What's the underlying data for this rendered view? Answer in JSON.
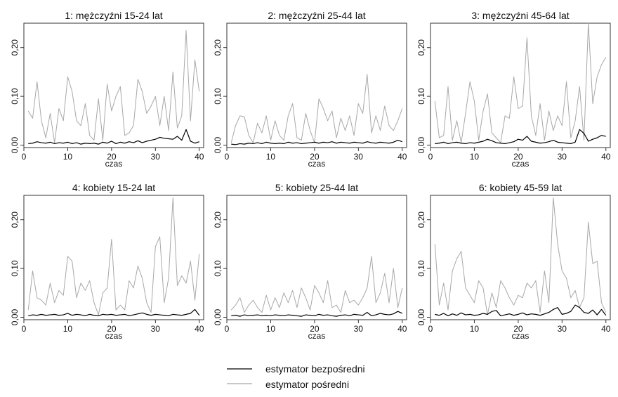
{
  "legend": {
    "direct_label": "estymator bezpośredni",
    "indirect_label": "estymator pośredni",
    "direct_color": "#000000",
    "indirect_color": "#a8a8a8"
  },
  "chart_data": [
    {
      "type": "line",
      "title": "1:  mężczyźni 15-24 lat",
      "xlabel": "czas",
      "ylabel": "",
      "xlim": [
        0,
        41
      ],
      "ylim": [
        -0.005,
        0.25
      ],
      "xticks": [
        "0",
        "10",
        "20",
        "30",
        "40"
      ],
      "yticks": [
        "0,00",
        "0,10",
        "0,20"
      ],
      "series": [
        {
          "name": "estymator bezpośredni",
          "color": "#000000",
          "values": [
            0.003,
            0.004,
            0.007,
            0.005,
            0.004,
            0.006,
            0.003,
            0.005,
            0.004,
            0.006,
            0.003,
            0.005,
            0.002,
            0.004,
            0.003,
            0.004,
            0.002,
            0.006,
            0.004,
            0.008,
            0.003,
            0.006,
            0.004,
            0.007,
            0.005,
            0.009,
            0.005,
            0.008,
            0.01,
            0.012,
            0.016,
            0.014,
            0.013,
            0.012,
            0.018,
            0.01,
            0.032,
            0.008,
            0.004,
            0.007
          ]
        },
        {
          "name": "estymator pośredni",
          "color": "#a8a8a8",
          "values": [
            0.07,
            0.055,
            0.13,
            0.05,
            0.015,
            0.065,
            0.005,
            0.075,
            0.05,
            0.14,
            0.11,
            0.05,
            0.04,
            0.085,
            0.02,
            0.01,
            0.095,
            0.01,
            0.125,
            0.07,
            0.1,
            0.12,
            0.02,
            0.025,
            0.04,
            0.135,
            0.11,
            0.065,
            0.08,
            0.1,
            0.04,
            0.1,
            0.03,
            0.15,
            0.035,
            0.06,
            0.235,
            0.05,
            0.175,
            0.11
          ]
        }
      ]
    },
    {
      "type": "line",
      "title": "2:  mężczyźni 25-44 lat",
      "xlabel": "czas",
      "ylabel": "",
      "xlim": [
        0,
        41
      ],
      "ylim": [
        -0.005,
        0.25
      ],
      "xticks": [
        "0",
        "10",
        "20",
        "30",
        "40"
      ],
      "yticks": [
        "0,00",
        "0,10",
        "0,20"
      ],
      "series": [
        {
          "name": "estymator bezpośredni",
          "color": "#000000",
          "values": [
            0.002,
            0.001,
            0.003,
            0.002,
            0.004,
            0.003,
            0.005,
            0.003,
            0.006,
            0.004,
            0.003,
            0.004,
            0.003,
            0.006,
            0.004,
            0.005,
            0.003,
            0.004,
            0.005,
            0.006,
            0.004,
            0.006,
            0.005,
            0.007,
            0.004,
            0.006,
            0.005,
            0.004,
            0.006,
            0.005,
            0.004,
            0.007,
            0.005,
            0.004,
            0.006,
            0.005,
            0.004,
            0.006,
            0.01,
            0.007
          ]
        },
        {
          "name": "estymator pośredni",
          "color": "#a8a8a8",
          "values": [
            0.005,
            0.04,
            0.06,
            0.058,
            0.02,
            0.005,
            0.045,
            0.025,
            0.06,
            0.01,
            0.05,
            0.02,
            0.01,
            0.06,
            0.085,
            0.015,
            0.01,
            0.065,
            0.03,
            0.005,
            0.095,
            0.075,
            0.05,
            0.07,
            0.015,
            0.055,
            0.03,
            0.06,
            0.02,
            0.085,
            0.065,
            0.145,
            0.025,
            0.06,
            0.03,
            0.08,
            0.04,
            0.03,
            0.05,
            0.075
          ]
        }
      ]
    },
    {
      "type": "line",
      "title": "3:  mężczyźni 45-64 lat",
      "xlabel": "czas",
      "ylabel": "",
      "xlim": [
        0,
        41
      ],
      "ylim": [
        -0.005,
        0.25
      ],
      "xticks": [
        "0",
        "10",
        "20",
        "30",
        "40"
      ],
      "yticks": [
        "0,00",
        "0,10",
        "0,20"
      ],
      "series": [
        {
          "name": "estymator bezpośredni",
          "color": "#000000",
          "values": [
            0.003,
            0.004,
            0.006,
            0.003,
            0.005,
            0.006,
            0.004,
            0.003,
            0.005,
            0.004,
            0.006,
            0.008,
            0.012,
            0.009,
            0.005,
            0.004,
            0.003,
            0.005,
            0.007,
            0.012,
            0.01,
            0.018,
            0.008,
            0.006,
            0.004,
            0.005,
            0.007,
            0.01,
            0.006,
            0.005,
            0.004,
            0.003,
            0.006,
            0.032,
            0.024,
            0.008,
            0.012,
            0.015,
            0.02,
            0.018
          ]
        },
        {
          "name": "estymator pośredni",
          "color": "#a8a8a8",
          "values": [
            0.09,
            0.015,
            0.02,
            0.12,
            0.01,
            0.05,
            0.005,
            0.065,
            0.13,
            0.09,
            0.01,
            0.07,
            0.105,
            0.025,
            0.015,
            0.005,
            0.06,
            0.055,
            0.14,
            0.075,
            0.08,
            0.22,
            0.06,
            0.02,
            0.085,
            0.01,
            0.07,
            0.03,
            0.06,
            0.04,
            0.13,
            0.015,
            0.05,
            0.12,
            0.01,
            0.25,
            0.085,
            0.14,
            0.165,
            0.18
          ]
        }
      ]
    },
    {
      "type": "line",
      "title": "4:  kobiety 15-24 lat",
      "xlabel": "czas",
      "ylabel": "",
      "xlim": [
        0,
        41
      ],
      "ylim": [
        -0.005,
        0.25
      ],
      "xticks": [
        "0",
        "10",
        "20",
        "30",
        "40"
      ],
      "yticks": [
        "0,00",
        "0,10",
        "0,20"
      ],
      "series": [
        {
          "name": "estymator bezpośredni",
          "color": "#000000",
          "values": [
            0.003,
            0.005,
            0.004,
            0.006,
            0.004,
            0.005,
            0.006,
            0.004,
            0.005,
            0.008,
            0.004,
            0.006,
            0.005,
            0.003,
            0.006,
            0.004,
            0.003,
            0.006,
            0.005,
            0.006,
            0.004,
            0.005,
            0.006,
            0.003,
            0.005,
            0.007,
            0.009,
            0.006,
            0.004,
            0.006,
            0.005,
            0.004,
            0.003,
            0.006,
            0.005,
            0.004,
            0.006,
            0.008,
            0.016,
            0.004
          ]
        },
        {
          "name": "estymator pośredni",
          "color": "#a8a8a8",
          "values": [
            0.015,
            0.095,
            0.04,
            0.035,
            0.025,
            0.07,
            0.03,
            0.055,
            0.045,
            0.125,
            0.115,
            0.04,
            0.07,
            0.055,
            0.075,
            0.03,
            0.005,
            0.05,
            0.06,
            0.16,
            0.015,
            0.025,
            0.015,
            0.075,
            0.06,
            0.105,
            0.08,
            0.03,
            0.01,
            0.145,
            0.165,
            0.03,
            0.08,
            0.245,
            0.065,
            0.085,
            0.07,
            0.115,
            0.035,
            0.13
          ]
        }
      ]
    },
    {
      "type": "line",
      "title": "5:  kobiety 25-44 lat",
      "xlabel": "czas",
      "ylabel": "",
      "xlim": [
        0,
        41
      ],
      "ylim": [
        -0.005,
        0.25
      ],
      "xticks": [
        "0",
        "10",
        "20",
        "30",
        "40"
      ],
      "yticks": [
        "0,00",
        "0,10",
        "0,20"
      ],
      "series": [
        {
          "name": "estymator bezpośredni",
          "color": "#000000",
          "values": [
            0.003,
            0.004,
            0.002,
            0.005,
            0.003,
            0.004,
            0.005,
            0.003,
            0.004,
            0.003,
            0.005,
            0.004,
            0.003,
            0.005,
            0.004,
            0.003,
            0.002,
            0.005,
            0.004,
            0.003,
            0.006,
            0.004,
            0.005,
            0.003,
            0.002,
            0.004,
            0.005,
            0.003,
            0.006,
            0.005,
            0.004,
            0.01,
            0.003,
            0.005,
            0.008,
            0.006,
            0.005,
            0.007,
            0.012,
            0.008
          ]
        },
        {
          "name": "estymator pośredni",
          "color": "#a8a8a8",
          "values": [
            0.015,
            0.025,
            0.04,
            0.01,
            0.025,
            0.035,
            0.02,
            0.01,
            0.045,
            0.015,
            0.04,
            0.02,
            0.05,
            0.03,
            0.055,
            0.02,
            0.06,
            0.04,
            0.015,
            0.065,
            0.05,
            0.03,
            0.075,
            0.02,
            0.025,
            0.01,
            0.055,
            0.03,
            0.035,
            0.025,
            0.04,
            0.06,
            0.125,
            0.03,
            0.05,
            0.09,
            0.03,
            0.1,
            0.02,
            0.06
          ]
        }
      ]
    },
    {
      "type": "line",
      "title": "6:  kobiety 45-59 lat",
      "xlabel": "czas",
      "ylabel": "",
      "xlim": [
        0,
        41
      ],
      "ylim": [
        -0.005,
        0.25
      ],
      "xticks": [
        "0",
        "10",
        "20",
        "30",
        "40"
      ],
      "yticks": [
        "0,00",
        "0,10",
        "0,20"
      ],
      "series": [
        {
          "name": "estymator bezpośredni",
          "color": "#000000",
          "values": [
            0.006,
            0.004,
            0.008,
            0.003,
            0.007,
            0.004,
            0.009,
            0.005,
            0.006,
            0.004,
            0.005,
            0.008,
            0.006,
            0.012,
            0.014,
            0.003,
            0.005,
            0.007,
            0.004,
            0.006,
            0.009,
            0.005,
            0.007,
            0.006,
            0.004,
            0.007,
            0.01,
            0.016,
            0.02,
            0.006,
            0.008,
            0.012,
            0.025,
            0.02,
            0.01,
            0.008,
            0.015,
            0.005,
            0.016,
            0.004
          ]
        },
        {
          "name": "estymator pośredni",
          "color": "#a8a8a8",
          "values": [
            0.15,
            0.025,
            0.07,
            0.015,
            0.095,
            0.12,
            0.135,
            0.06,
            0.045,
            0.03,
            0.075,
            0.06,
            0.005,
            0.05,
            0.02,
            0.075,
            0.06,
            0.04,
            0.025,
            0.045,
            0.04,
            0.07,
            0.06,
            0.075,
            0.01,
            0.095,
            0.03,
            0.245,
            0.15,
            0.095,
            0.08,
            0.04,
            0.055,
            0.02,
            0.04,
            0.195,
            0.11,
            0.115,
            0.03,
            0.01
          ]
        }
      ]
    }
  ]
}
